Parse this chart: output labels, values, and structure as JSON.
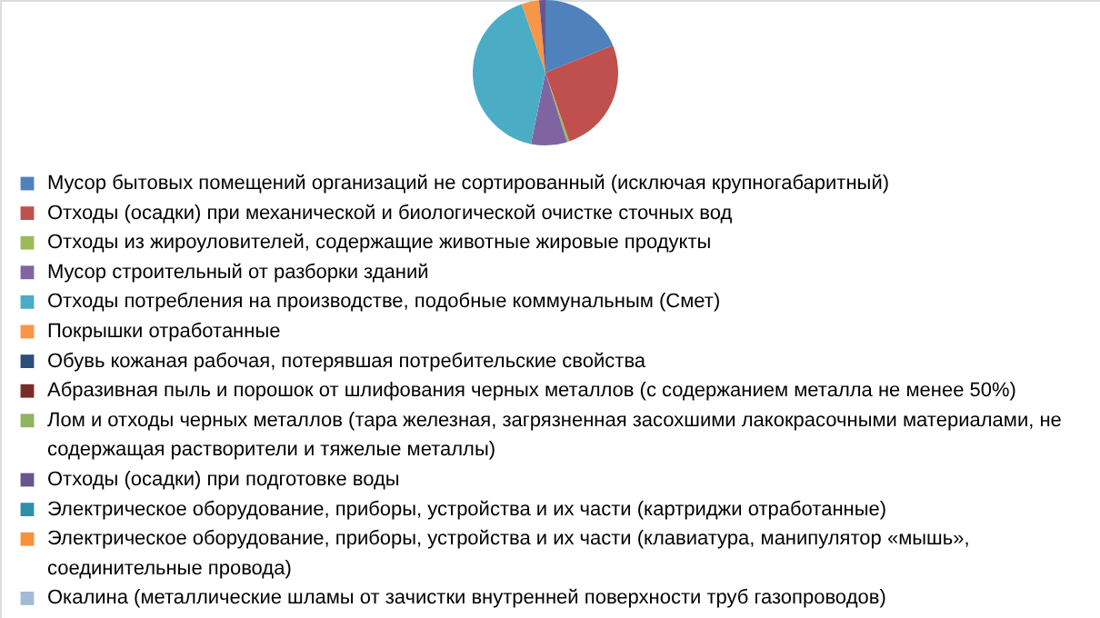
{
  "chart_data": {
    "type": "pie",
    "legend": "bottom",
    "categories": [
      "Мусор бытовых помещений организаций не сортированный (исключая крупногабаритный)",
      "Отходы (осадки) при механической и биологической очистке сточных вод",
      "Отходы из жироуловителей, содержащие животные жировые продукты",
      "Мусор строительный от разборки зданий",
      "Отходы потребления на производстве, подобные коммунальным (Смет)",
      "Покрышки отработанные",
      "Обувь кожаная рабочая, потерявшая потребительские свойства",
      "Абразивная пыль и порошок от шлифования черных металлов (с содержанием металла не менее 50%)",
      "Лом и отходы черных металлов (тара железная, загрязненная засохшими лакокрасочными материалами, не содержащая растворители и тяжелые металлы)",
      "Отходы (осадки) при подготовке воды",
      "Электрическое оборудование, приборы, устройства и их части (картриджи отработанные)",
      "Электрическое оборудование, приборы, устройства и их части (клавиатура, манипулятор «мышь», соединительные провода)",
      "Окалина (металлические шламы от зачистки внутренней поверхности труб газопроводов)"
    ],
    "values": [
      18.9,
      25.8,
      0.5,
      8.0,
      41.5,
      3.9,
      0,
      0,
      0,
      1.4,
      0,
      0,
      0
    ],
    "colors": [
      "#4f81bd",
      "#c0504d",
      "#9bbb59",
      "#8064a2",
      "#4bacc6",
      "#f79646",
      "#2c4d75",
      "#772c2a",
      "#8fb360",
      "#6a548c",
      "#2f8fa8",
      "#f7913a",
      "#a5b9d8"
    ]
  }
}
